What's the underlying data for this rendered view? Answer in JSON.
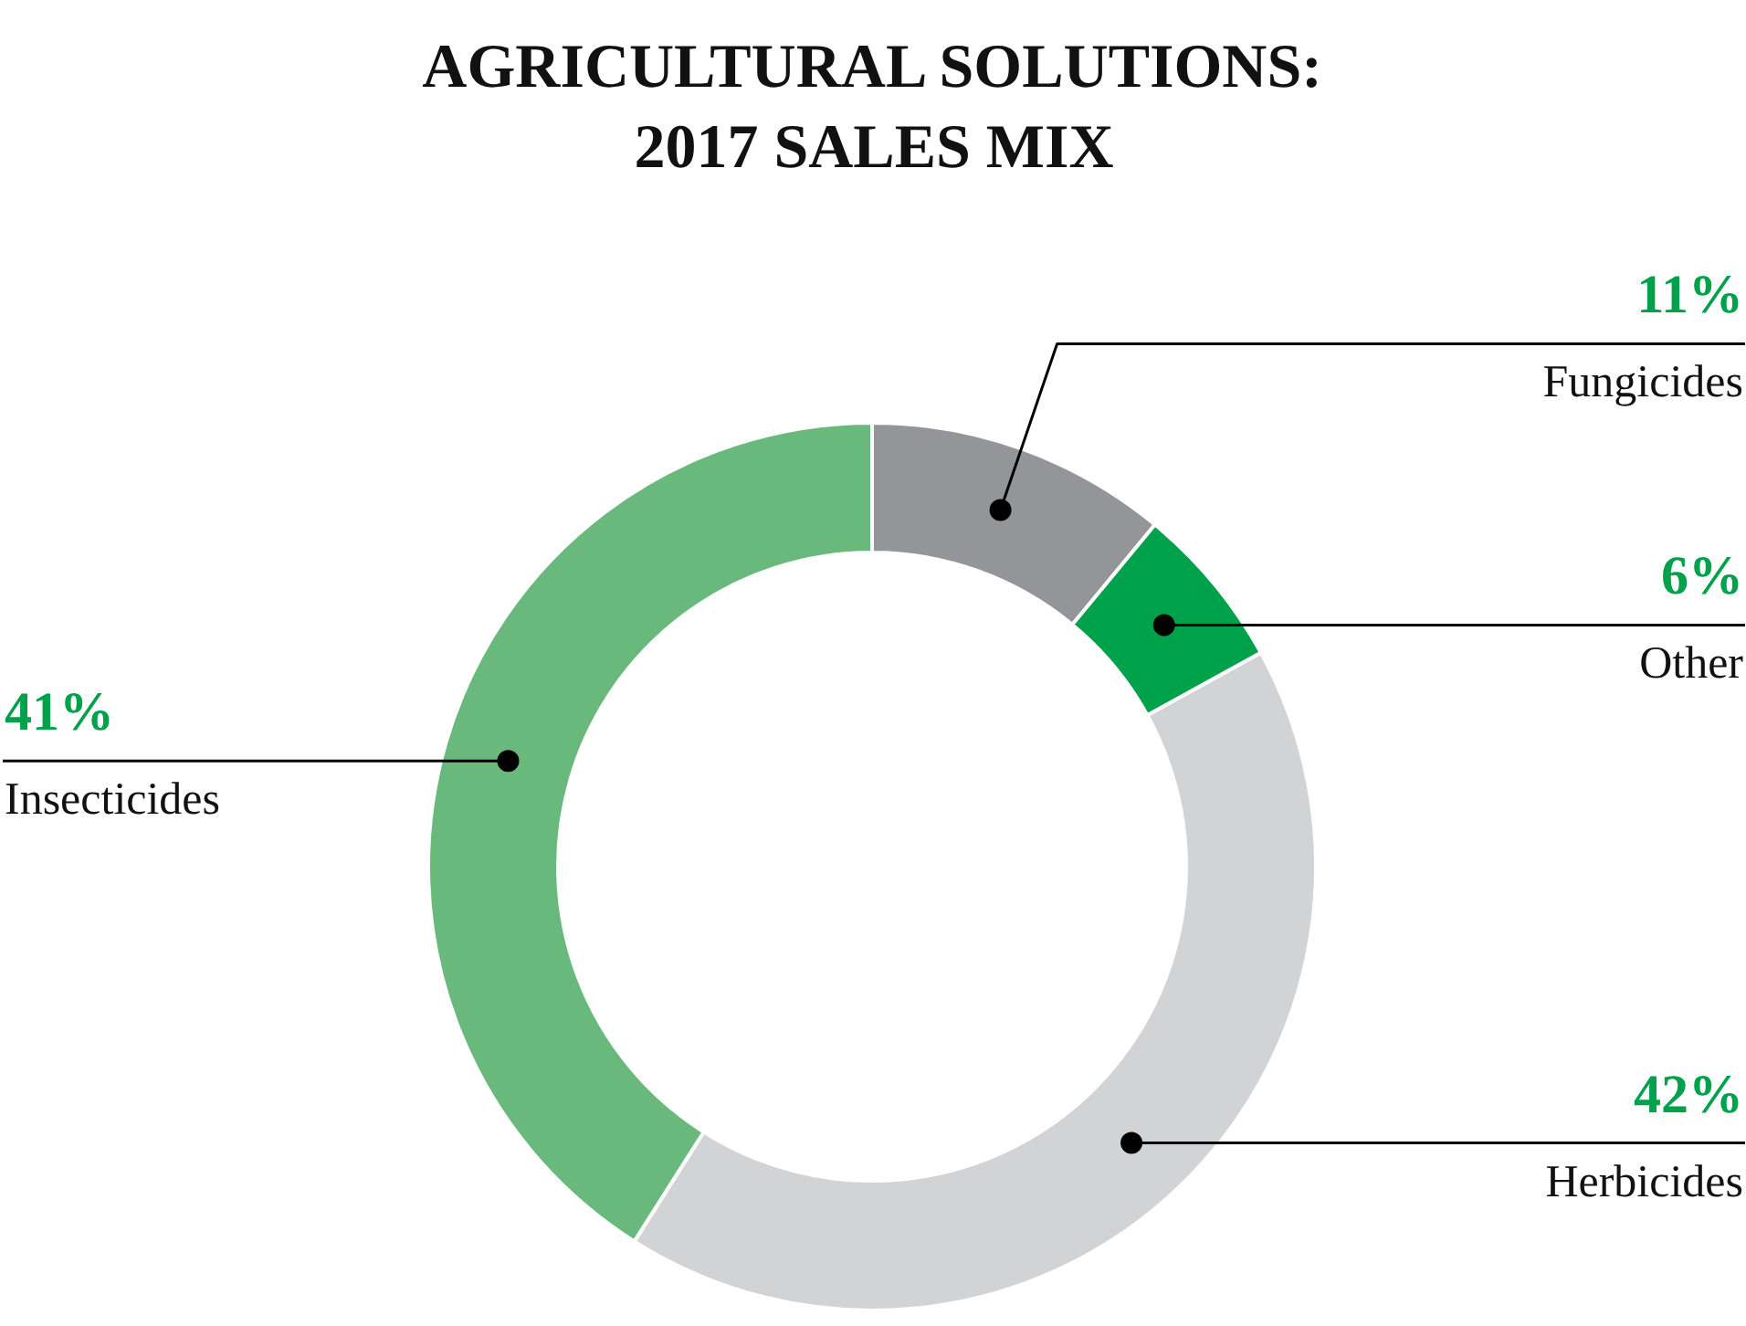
{
  "chart_data": {
    "type": "donut",
    "title": "AGRICULTURAL SOLUTIONS:\n2017 SALES MIX",
    "categories": [
      "Fungicides",
      "Other",
      "Herbicides",
      "Insecticides"
    ],
    "values": [
      11,
      6,
      42,
      41
    ],
    "value_labels": [
      "11%",
      "6%",
      "42%",
      "41%"
    ],
    "colors": [
      "#939598",
      "#00a14b",
      "#d1d3d4",
      "#6ab97c"
    ]
  }
}
